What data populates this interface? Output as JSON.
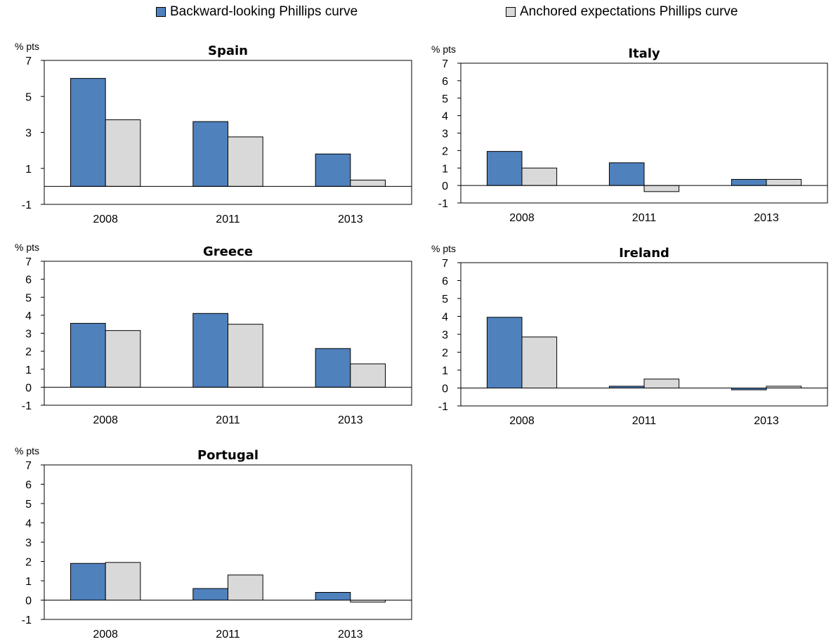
{
  "legend": {
    "series_a": "Backward-looking Phillips curve",
    "series_b": "Anchored expectations Phillips curve"
  },
  "colors": {
    "series_a": "#4f81bd",
    "series_b": "#d9d9d9",
    "axis": "#000000"
  },
  "chart_data": [
    {
      "type": "bar",
      "title": "Spain",
      "ylabel": "% pts",
      "categories": [
        "2008",
        "2011",
        "2013"
      ],
      "series": [
        {
          "name": "Backward-looking Phillips curve",
          "values": [
            6.0,
            3.6,
            1.8
          ]
        },
        {
          "name": "Anchored expectations Phillips curve",
          "values": [
            3.7,
            2.75,
            0.35
          ]
        }
      ],
      "ylim": [
        -1,
        7
      ],
      "yticks": [
        -1,
        1,
        3,
        5,
        7
      ]
    },
    {
      "type": "bar",
      "title": "Italy",
      "ylabel": "% pts",
      "categories": [
        "2008",
        "2011",
        "2013"
      ],
      "series": [
        {
          "name": "Backward-looking Phillips curve",
          "values": [
            1.95,
            1.3,
            0.35
          ]
        },
        {
          "name": "Anchored expectations Phillips curve",
          "values": [
            1.0,
            -0.35,
            0.35
          ]
        }
      ],
      "ylim": [
        -1,
        7
      ],
      "yticks": [
        -1,
        0,
        1,
        2,
        3,
        4,
        5,
        6,
        7
      ]
    },
    {
      "type": "bar",
      "title": "Greece",
      "ylabel": "% pts",
      "categories": [
        "2008",
        "2011",
        "2013"
      ],
      "series": [
        {
          "name": "Backward-looking Phillips curve",
          "values": [
            3.55,
            4.1,
            2.15
          ]
        },
        {
          "name": "Anchored expectations Phillips curve",
          "values": [
            3.15,
            3.5,
            1.3
          ]
        }
      ],
      "ylim": [
        -1,
        7
      ],
      "yticks": [
        -1,
        0,
        1,
        2,
        3,
        4,
        5,
        6,
        7
      ]
    },
    {
      "type": "bar",
      "title": "Ireland",
      "ylabel": "% pts",
      "categories": [
        "2008",
        "2011",
        "2013"
      ],
      "series": [
        {
          "name": "Backward-looking Phillips curve",
          "values": [
            3.95,
            0.1,
            -0.1
          ]
        },
        {
          "name": "Anchored expectations Phillips curve",
          "values": [
            2.85,
            0.5,
            0.1
          ]
        }
      ],
      "ylim": [
        -1,
        7
      ],
      "yticks": [
        -1,
        0,
        1,
        2,
        3,
        4,
        5,
        6,
        7
      ]
    },
    {
      "type": "bar",
      "title": "Portugal",
      "ylabel": "% pts",
      "categories": [
        "2008",
        "2011",
        "2013"
      ],
      "series": [
        {
          "name": "Backward-looking Phillips curve",
          "values": [
            1.9,
            0.6,
            0.4
          ]
        },
        {
          "name": "Anchored expectations Phillips curve",
          "values": [
            1.95,
            1.3,
            -0.1
          ]
        }
      ],
      "ylim": [
        -1,
        7
      ],
      "yticks": [
        -1,
        0,
        1,
        2,
        3,
        4,
        5,
        6,
        7
      ]
    }
  ]
}
